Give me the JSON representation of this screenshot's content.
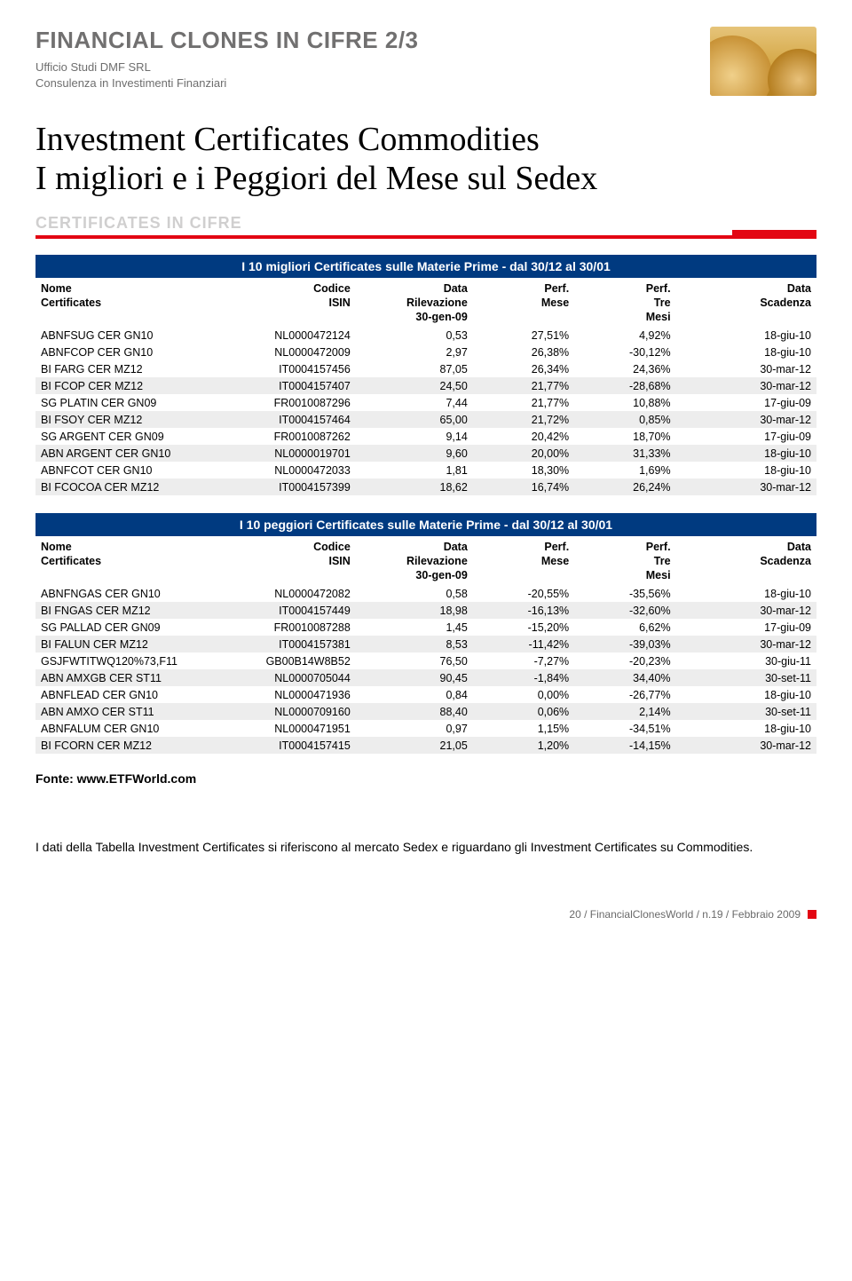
{
  "header": {
    "title": "FINANCIAL CLONES IN CIFRE 2/3",
    "sub1": "Ufficio Studi DMF SRL",
    "sub2": "Consulenza in Investimenti Finanziari"
  },
  "headline": {
    "l1": "Investment Certificates Commodities",
    "l2": "I migliori e i Peggiori del Mese sul Sedex"
  },
  "section_label": "CERTIFICATES IN CIFRE",
  "col": {
    "nome1": "Nome",
    "nome2": "Certificates",
    "isin1": "Codice",
    "isin2": "ISIN",
    "data1": "Data",
    "data2": "Rilevazione",
    "data3": "30-gen-09",
    "pm1": "Perf.",
    "pm2": "Mese",
    "pt1": "Perf.",
    "pt2": "Tre",
    "pt3": "Mesi",
    "sc1": "Data",
    "sc2": "Scadenza"
  },
  "best": {
    "banner": "I 10 migliori Certificates sulle Materie Prime - dal 30/12 al 30/01",
    "rows": [
      {
        "n": "ABNFSUG CER GN10",
        "i": "NL0000472124",
        "d": "0,53",
        "pm": "27,51%",
        "pt": "4,92%",
        "s": "18-giu-10"
      },
      {
        "n": "ABNFCOP CER GN10",
        "i": "NL0000472009",
        "d": "2,97",
        "pm": "26,38%",
        "pt": "-30,12%",
        "s": "18-giu-10"
      },
      {
        "n": "BI FARG CER MZ12",
        "i": "IT0004157456",
        "d": "87,05",
        "pm": "26,34%",
        "pt": "24,36%",
        "s": "30-mar-12"
      },
      {
        "n": "BI FCOP CER MZ12",
        "i": "IT0004157407",
        "d": "24,50",
        "pm": "21,77%",
        "pt": "-28,68%",
        "s": "30-mar-12"
      },
      {
        "n": "SG PLATIN CER GN09",
        "i": "FR0010087296",
        "d": "7,44",
        "pm": "21,77%",
        "pt": "10,88%",
        "s": "17-giu-09"
      },
      {
        "n": "BI FSOY CER MZ12",
        "i": "IT0004157464",
        "d": "65,00",
        "pm": "21,72%",
        "pt": "0,85%",
        "s": "30-mar-12"
      },
      {
        "n": "SG ARGENT CER GN09",
        "i": "FR0010087262",
        "d": "9,14",
        "pm": "20,42%",
        "pt": "18,70%",
        "s": "17-giu-09"
      },
      {
        "n": "ABN ARGENT CER GN10",
        "i": "NL0000019701",
        "d": "9,60",
        "pm": "20,00%",
        "pt": "31,33%",
        "s": "18-giu-10"
      },
      {
        "n": "ABNFCOT CER GN10",
        "i": "NL0000472033",
        "d": "1,81",
        "pm": "18,30%",
        "pt": "1,69%",
        "s": "18-giu-10"
      },
      {
        "n": "BI FCOCOA CER MZ12",
        "i": "IT0004157399",
        "d": "18,62",
        "pm": "16,74%",
        "pt": "26,24%",
        "s": "30-mar-12"
      }
    ]
  },
  "worst": {
    "banner": "I 10 peggiori Certificates sulle Materie Prime - dal 30/12 al 30/01",
    "rows": [
      {
        "n": "ABNFNGAS CER GN10",
        "i": "NL0000472082",
        "d": "0,58",
        "pm": "-20,55%",
        "pt": "-35,56%",
        "s": "18-giu-10"
      },
      {
        "n": "BI FNGAS CER MZ12",
        "i": "IT0004157449",
        "d": "18,98",
        "pm": "-16,13%",
        "pt": "-32,60%",
        "s": "30-mar-12"
      },
      {
        "n": "SG PALLAD CER GN09",
        "i": "FR0010087288",
        "d": "1,45",
        "pm": "-15,20%",
        "pt": "6,62%",
        "s": "17-giu-09"
      },
      {
        "n": "BI FALUN CER MZ12",
        "i": "IT0004157381",
        "d": "8,53",
        "pm": "-11,42%",
        "pt": "-39,03%",
        "s": "30-mar-12"
      },
      {
        "n": "GSJFWTITWQ120%73,F11",
        "i": "GB00B14W8B52",
        "d": "76,50",
        "pm": "-7,27%",
        "pt": "-20,23%",
        "s": "30-giu-11"
      },
      {
        "n": "ABN AMXGB CER ST11",
        "i": "NL0000705044",
        "d": "90,45",
        "pm": "-1,84%",
        "pt": "34,40%",
        "s": "30-set-11"
      },
      {
        "n": "ABNFLEAD CER GN10",
        "i": "NL0000471936",
        "d": "0,84",
        "pm": "0,00%",
        "pt": "-26,77%",
        "s": "18-giu-10"
      },
      {
        "n": "ABN AMXO CER ST11",
        "i": "NL0000709160",
        "d": "88,40",
        "pm": "0,06%",
        "pt": "2,14%",
        "s": "30-set-11"
      },
      {
        "n": "ABNFALUM CER GN10",
        "i": "NL0000471951",
        "d": "0,97",
        "pm": "1,15%",
        "pt": "-34,51%",
        "s": "18-giu-10"
      },
      {
        "n": "BI FCORN CER MZ12",
        "i": "IT0004157415",
        "d": "21,05",
        "pm": "1,20%",
        "pt": "-14,15%",
        "s": "30-mar-12"
      }
    ]
  },
  "fonte": "Fonte: www.ETFWorld.com",
  "note": "I dati della Tabella Investment Certificates  si riferiscono al mercato Sedex e riguardano gli Investment Certificates su Commodities.",
  "footer": "20 / FinancialClonesWorld / n.19 / Febbraio  2009",
  "style": {
    "banner_bg": "#003a80",
    "banner_fg": "#ffffff",
    "alt_row_bg": "#ededed",
    "accent": "#e30613",
    "muted": "#717070",
    "body_font_size": 12.5
  }
}
